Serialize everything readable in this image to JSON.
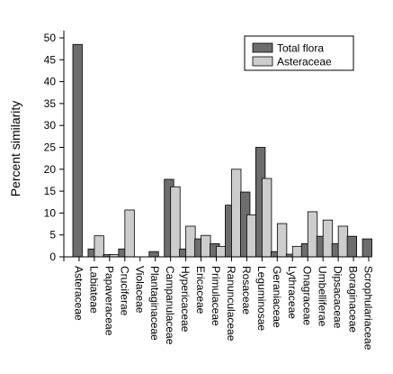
{
  "chart_data": {
    "type": "bar",
    "title": "",
    "xlabel": "",
    "ylabel": "Percent similarity",
    "ylim": [
      0,
      50
    ],
    "yticks": [
      0,
      5,
      10,
      15,
      20,
      25,
      30,
      35,
      40,
      45,
      50
    ],
    "grid": false,
    "legend_position": "top-right",
    "categories": [
      "Asteraceae",
      "Labiateae",
      "Papaveraceae",
      "Cruciferae",
      "Violaceae",
      "Plantaginaceae",
      "Campanulaceae",
      "Hypericaceae",
      "Ericaceae",
      "Primulaceae",
      "Ranunculaceae",
      "Rosaceae",
      "Leguminosae",
      "Geraniaceae",
      "Lythraceae",
      "Onagraceae",
      "Umbelliferae",
      "Dipsacaceae",
      "Boraginaceae",
      "Scrophulariaceae"
    ],
    "series": [
      {
        "name": "Total flora",
        "color": "#6d6d6d",
        "values": [
          48.5,
          1.8,
          0.5,
          1.8,
          0,
          1.2,
          17.7,
          1.8,
          4.1,
          3.0,
          11.8,
          14.8,
          25.0,
          1.2,
          0.6,
          3.0,
          4.7,
          3.0,
          4.7,
          4.1
        ]
      },
      {
        "name": "Asteraceae",
        "color": "#cdcdcd",
        "values": [
          0,
          4.8,
          0.5,
          10.7,
          0,
          0,
          16.0,
          7.0,
          4.9,
          2.4,
          20.0,
          9.6,
          17.9,
          7.6,
          2.4,
          10.3,
          8.4,
          7.0,
          0,
          0
        ]
      }
    ]
  }
}
